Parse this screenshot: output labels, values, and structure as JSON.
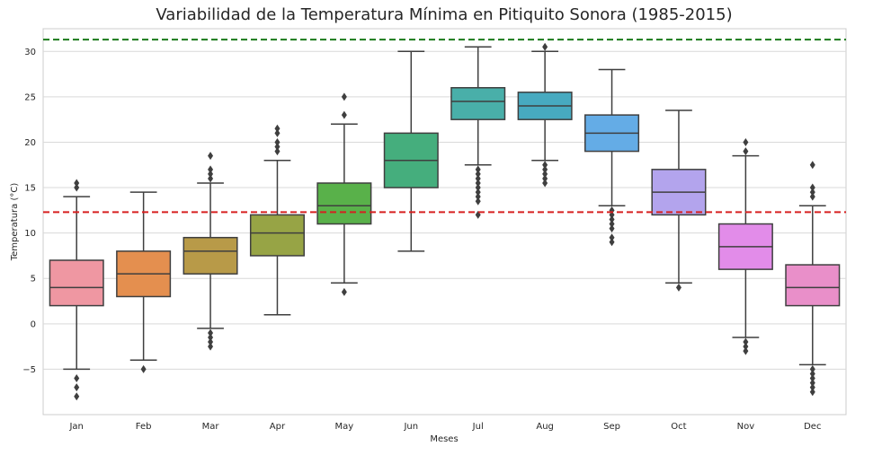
{
  "chart_data": {
    "type": "boxplot",
    "title": "Variabilidad de la Temperatura Mínima en Pitiquito Sonora (1985-2015)",
    "xlabel": "Meses",
    "ylabel": "Temperatura (°C)",
    "ylim": [
      -10,
      32.5
    ],
    "yticks": [
      -5,
      0,
      5,
      10,
      15,
      20,
      25,
      30
    ],
    "grid": true,
    "categories": [
      "Jan",
      "Feb",
      "Mar",
      "Apr",
      "May",
      "Jun",
      "Jul",
      "Aug",
      "Sep",
      "Oct",
      "Nov",
      "Dec"
    ],
    "colors": [
      "#ef97a2",
      "#e48f4f",
      "#b89a48",
      "#97a445",
      "#59b14a",
      "#45ae7d",
      "#49afa9",
      "#47aac0",
      "#64ace6",
      "#b3a4ed",
      "#e28ce9",
      "#e98fc9"
    ],
    "boxes": [
      {
        "q1": 2.0,
        "median": 4.0,
        "q3": 7.0,
        "whislo": -5.0,
        "whishi": 14.0,
        "fliers": [
          15.0,
          15.5,
          -6.0,
          -7.0,
          -8.0
        ]
      },
      {
        "q1": 3.0,
        "median": 5.5,
        "q3": 8.0,
        "whislo": -4.0,
        "whishi": 14.5,
        "fliers": [
          -5.0
        ]
      },
      {
        "q1": 5.5,
        "median": 8.0,
        "q3": 9.5,
        "whislo": -0.5,
        "whishi": 15.5,
        "fliers": [
          16.0,
          16.5,
          17.0,
          18.5,
          -1.0,
          -1.5,
          -2.0,
          -2.5
        ]
      },
      {
        "q1": 7.5,
        "median": 10.0,
        "q3": 12.0,
        "whislo": 1.0,
        "whishi": 18.0,
        "fliers": [
          19.0,
          19.5,
          20.0,
          21.0,
          21.5
        ]
      },
      {
        "q1": 11.0,
        "median": 13.0,
        "q3": 15.5,
        "whislo": 4.5,
        "whishi": 22.0,
        "fliers": [
          23.0,
          25.0,
          3.5
        ]
      },
      {
        "q1": 15.0,
        "median": 18.0,
        "q3": 21.0,
        "whislo": 8.0,
        "whishi": 30.0,
        "fliers": []
      },
      {
        "q1": 22.5,
        "median": 24.5,
        "q3": 26.0,
        "whislo": 17.5,
        "whishi": 30.5,
        "fliers": [
          17.0,
          16.5,
          16.0,
          15.5,
          15.0,
          14.5,
          14.0,
          13.5,
          12.0
        ]
      },
      {
        "q1": 22.5,
        "median": 24.0,
        "q3": 25.5,
        "whislo": 18.0,
        "whishi": 30.0,
        "fliers": [
          30.5,
          17.5,
          17.0,
          16.5,
          16.0,
          15.5
        ]
      },
      {
        "q1": 19.0,
        "median": 21.0,
        "q3": 23.0,
        "whislo": 13.0,
        "whishi": 28.0,
        "fliers": [
          12.5,
          12.0,
          11.5,
          11.0,
          10.5,
          9.5,
          9.0
        ]
      },
      {
        "q1": 12.0,
        "median": 14.5,
        "q3": 17.0,
        "whislo": 4.5,
        "whishi": 23.5,
        "fliers": [
          4.0
        ]
      },
      {
        "q1": 6.0,
        "median": 8.5,
        "q3": 11.0,
        "whislo": -1.5,
        "whishi": 18.5,
        "fliers": [
          19.0,
          20.0,
          -2.0,
          -2.5,
          -3.0
        ]
      },
      {
        "q1": 2.0,
        "median": 4.0,
        "q3": 6.5,
        "whislo": -4.5,
        "whishi": 13.0,
        "fliers": [
          14.0,
          14.5,
          15.0,
          17.5,
          -5.0,
          -5.5,
          -6.0,
          -6.5,
          -7.0,
          -7.5
        ]
      }
    ],
    "reference_lines": [
      {
        "y": 31.3,
        "color": "#1a7a1a",
        "style": "dashed"
      },
      {
        "y": 12.3,
        "color": "#d62020",
        "style": "dashed"
      }
    ]
  }
}
